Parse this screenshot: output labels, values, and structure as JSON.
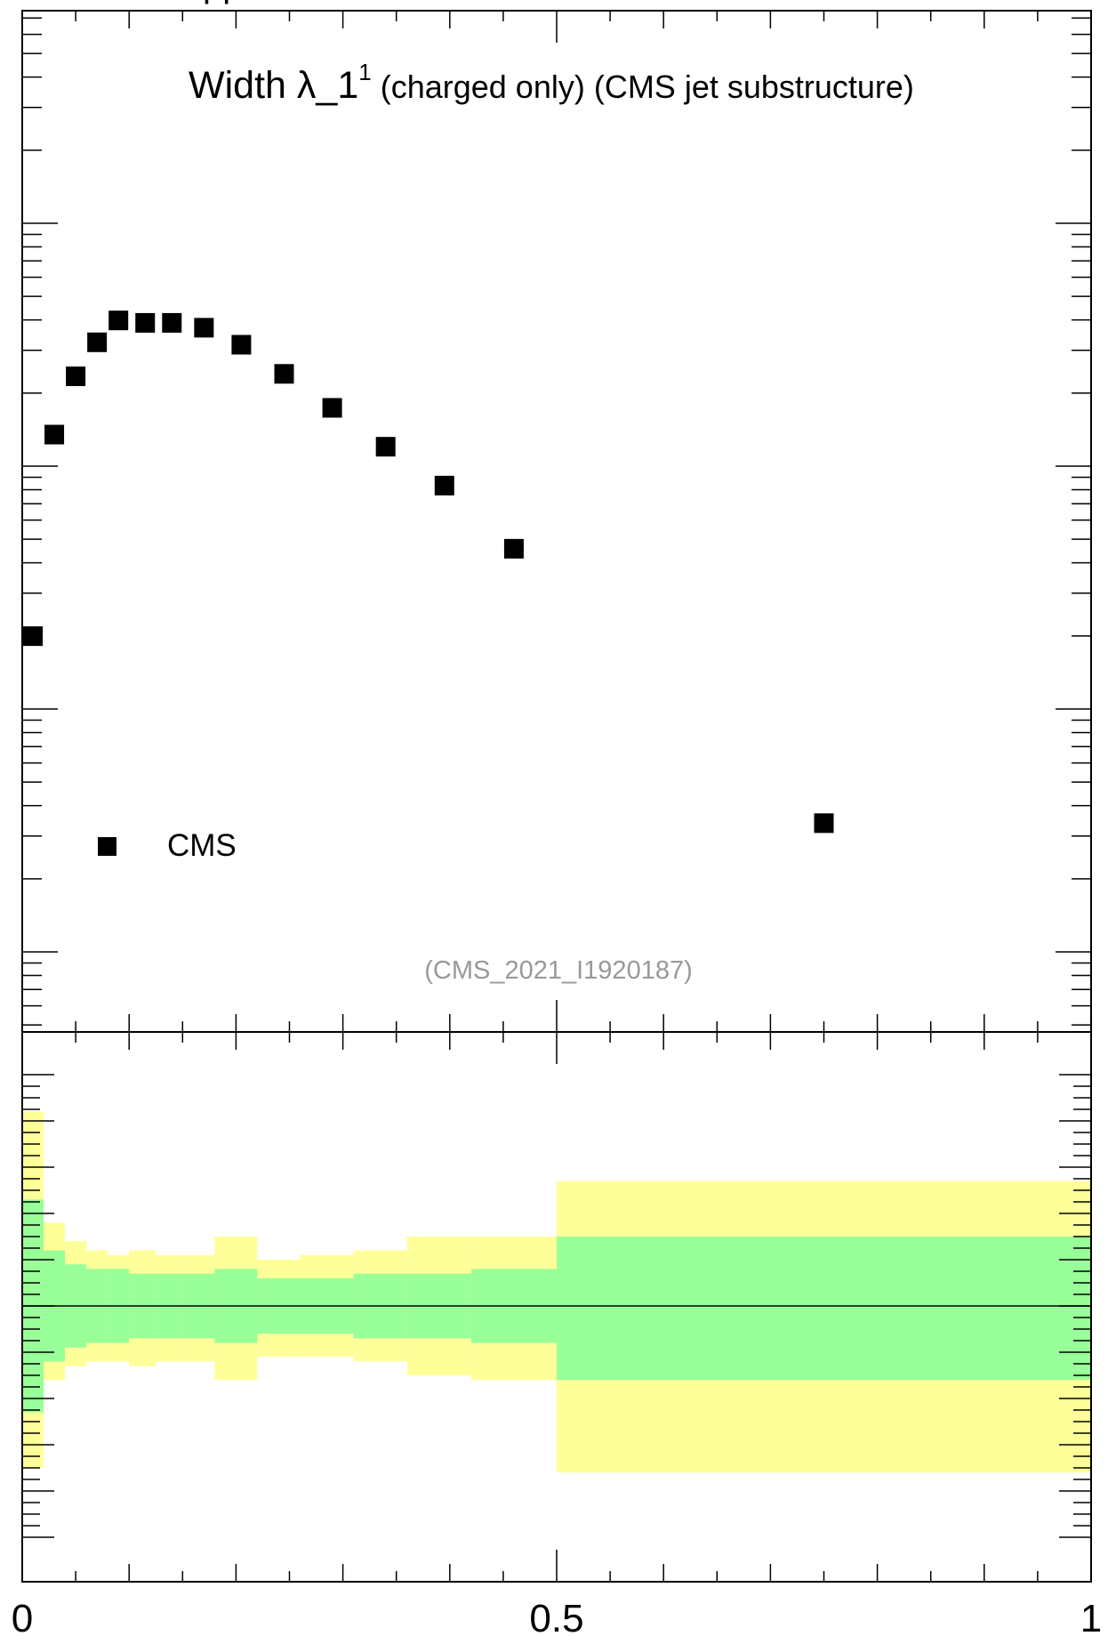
{
  "chart_data": [
    {
      "type": "scatter",
      "title_main": "Width λ_1",
      "title_sup": "1",
      "title_rest": "(charged only) (CMS jet substructure)",
      "header_fragment": "pp",
      "analysis_tag": "(CMS_2021_I1920187)",
      "legend": [
        {
          "name": "CMS",
          "marker": "square",
          "color": "#000000",
          "position": "bottom-left"
        }
      ],
      "xlim": [
        0,
        1
      ],
      "y_scale": "log",
      "series": [
        {
          "name": "CMS",
          "x": [
            0.01,
            0.03,
            0.05,
            0.07,
            0.09,
            0.115,
            0.14,
            0.17,
            0.205,
            0.245,
            0.29,
            0.34,
            0.395,
            0.46,
            0.75
          ],
          "y_decades": [
            -1.7,
            -0.87,
            -0.63,
            -0.49,
            -0.4,
            -0.41,
            -0.41,
            -0.43,
            -0.5,
            -0.62,
            -0.76,
            -0.92,
            -1.08,
            -1.34,
            -2.47
          ]
        }
      ]
    },
    {
      "type": "area",
      "subtype": "ratio-uncertainty-band",
      "xlim": [
        0,
        1
      ],
      "reference_line": 1.0,
      "bins": [
        0,
        0.02,
        0.04,
        0.06,
        0.08,
        0.1,
        0.125,
        0.15,
        0.18,
        0.22,
        0.26,
        0.31,
        0.36,
        0.42,
        0.5,
        1.0
      ],
      "stat_band": {
        "color": "#99ff99",
        "upper": [
          1.23,
          1.12,
          1.09,
          1.08,
          1.08,
          1.07,
          1.07,
          1.07,
          1.08,
          1.06,
          1.06,
          1.07,
          1.07,
          1.08,
          1.15
        ],
        "lower": [
          0.77,
          0.88,
          0.91,
          0.92,
          0.92,
          0.93,
          0.93,
          0.93,
          0.92,
          0.94,
          0.94,
          0.93,
          0.93,
          0.92,
          0.84
        ]
      },
      "total_band": {
        "color": "#ffff99",
        "upper": [
          1.42,
          1.18,
          1.14,
          1.12,
          1.11,
          1.12,
          1.11,
          1.11,
          1.15,
          1.1,
          1.11,
          1.12,
          1.15,
          1.15,
          1.27
        ],
        "lower": [
          0.65,
          0.84,
          0.87,
          0.88,
          0.88,
          0.87,
          0.88,
          0.88,
          0.84,
          0.89,
          0.89,
          0.88,
          0.85,
          0.84,
          0.64
        ]
      }
    }
  ],
  "x_ticks": [
    {
      "value": 0,
      "label": "0"
    },
    {
      "value": 0.5,
      "label": "0.5"
    },
    {
      "value": 1,
      "label": "1"
    }
  ]
}
